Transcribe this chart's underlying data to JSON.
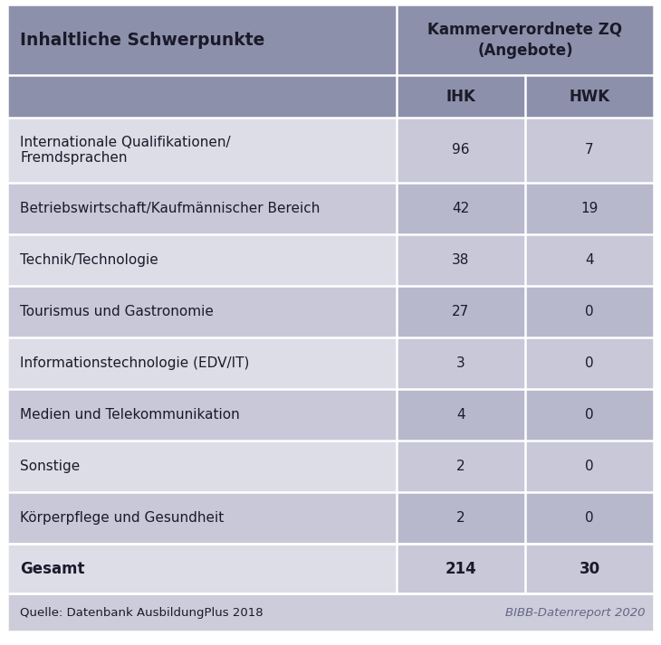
{
  "title_col1": "Inhaltliche Schwerpunkte",
  "title_col2": "Kammerverordnete ZQ\n(Angebote)",
  "subheader_ihk": "IHK",
  "subheader_hwk": "HWK",
  "rows": [
    {
      "label": "Internationale Qualifikationen/\nFremdsprachen",
      "ihk": "96",
      "hwk": "7"
    },
    {
      "label": "Betriebswirtschaft/Kaufmännischer Bereich",
      "ihk": "42",
      "hwk": "19"
    },
    {
      "label": "Technik/Technologie",
      "ihk": "38",
      "hwk": "4"
    },
    {
      "label": "Tourismus und Gastronomie",
      "ihk": "27",
      "hwk": "0"
    },
    {
      "label": "Informationstechnologie (EDV/IT)",
      "ihk": "3",
      "hwk": "0"
    },
    {
      "label": "Medien und Telekommunikation",
      "ihk": "4",
      "hwk": "0"
    },
    {
      "label": "Sonstige",
      "ihk": "2",
      "hwk": "0"
    },
    {
      "label": "Körperpflege und Gesundheit",
      "ihk": "2",
      "hwk": "0"
    }
  ],
  "total_label": "Gesamt",
  "total_ihk": "214",
  "total_hwk": "30",
  "footer_left": "Quelle: Datenbank AusbildungPlus 2018",
  "footer_right": "BIBB-Datenreport 2020",
  "color_header": "#8C90AA",
  "color_subheader": "#8C90AA",
  "color_row_label_light": "#DDDDE8",
  "color_row_label_dark": "#C8C8D8",
  "color_row_val_light": "#C8C8D8",
  "color_row_val_dark": "#B8B8CC",
  "color_total_label": "#DDDDE8",
  "color_total_val": "#C8C8D8",
  "color_footer_bg": "#CCCCDA",
  "color_border": "#ffffff",
  "text_color_header": "#1a1a2a",
  "text_color_dark": "#1a1a2a",
  "text_color_footer_left": "#1a1a2a",
  "text_color_footer_right": "#666688"
}
